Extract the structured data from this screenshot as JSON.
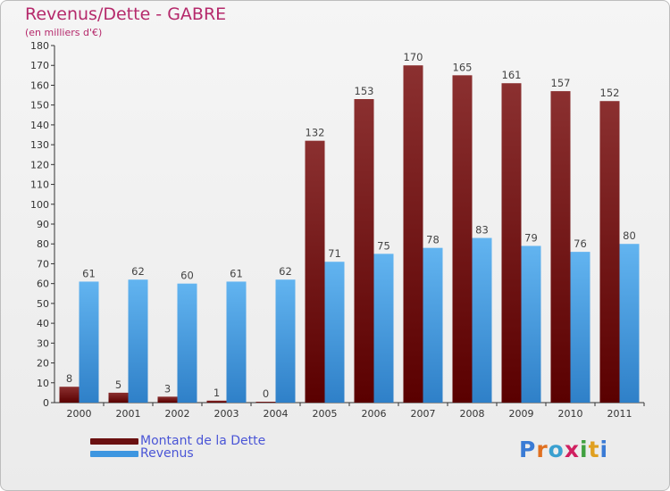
{
  "title": "Revenus/Dette - GABRE",
  "subtitle": "(en milliers d'€)",
  "colors": {
    "dette_top": "#8b3030",
    "dette_bottom": "#5a0000",
    "revenus_top": "#62b4f0",
    "revenus_bottom": "#2f80c8",
    "title": "#b5296b",
    "legend_text": "#4a55d6"
  },
  "legend": [
    {
      "label": "Montant de la Dette",
      "color": "#6a1010"
    },
    {
      "label": "Revenus",
      "color": "#3d96e0"
    }
  ],
  "logo": {
    "letters": [
      "P",
      "r",
      "o",
      "x",
      "i",
      "t",
      "i"
    ],
    "colors": [
      "#3a7bd5",
      "#e07020",
      "#3aa0d0",
      "#d02060",
      "#40a040",
      "#e0a020",
      "#3a7bd5"
    ]
  },
  "chart_data": {
    "type": "bar",
    "categories": [
      "2000",
      "2001",
      "2002",
      "2003",
      "2004",
      "2005",
      "2006",
      "2007",
      "2008",
      "2009",
      "2010",
      "2011"
    ],
    "series": [
      {
        "name": "Montant de la Dette",
        "values": [
          8,
          5,
          3,
          1,
          0,
          132,
          153,
          170,
          165,
          161,
          157,
          152
        ]
      },
      {
        "name": "Revenus",
        "values": [
          61,
          62,
          60,
          61,
          62,
          71,
          75,
          78,
          83,
          79,
          76,
          80
        ]
      }
    ],
    "ylim": [
      0,
      180
    ],
    "yticks": [
      0,
      10,
      20,
      30,
      40,
      50,
      60,
      70,
      80,
      90,
      100,
      110,
      120,
      130,
      140,
      150,
      160,
      170,
      180
    ],
    "grid": false,
    "legend_position": "bottom-left"
  }
}
